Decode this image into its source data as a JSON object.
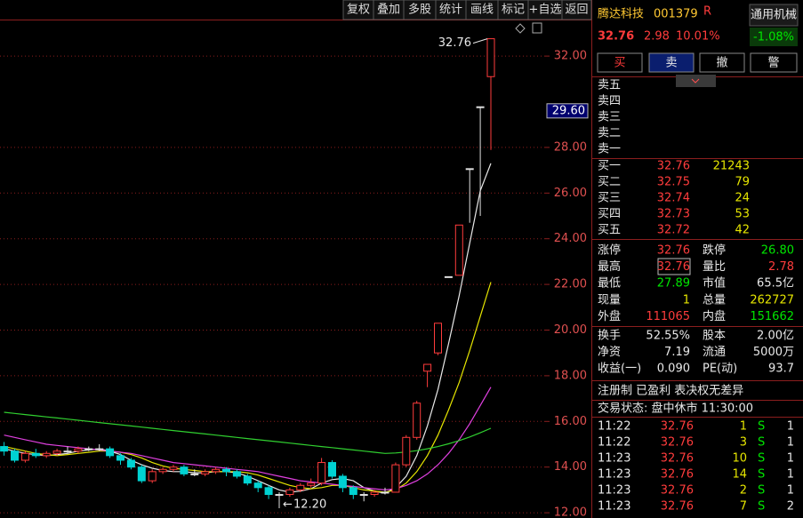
{
  "toolbar": [
    "复权",
    "叠加",
    "多股",
    "统计",
    "画线",
    "标记",
    "+自选",
    "返回"
  ],
  "chart_data": {
    "type": "candlestick",
    "open": [
      14.9,
      14.7,
      14.3,
      14.6,
      14.5,
      14.6,
      14.7,
      14.7,
      14.8,
      14.8,
      14.8,
      14.5,
      14.3,
      14.0,
      13.4,
      13.8,
      13.9,
      14.0,
      13.7,
      13.7,
      13.8,
      13.9,
      13.8,
      13.6,
      13.3,
      13.1,
      12.8,
      12.8,
      13.0,
      13.2,
      13.3,
      14.2,
      13.6,
      13.1,
      12.8,
      12.8,
      12.9,
      12.9,
      14.1,
      15.3,
      18.2,
      19.0,
      22.34,
      22.4,
      27.07,
      29.78,
      31.1
    ],
    "high": [
      15.1,
      14.8,
      14.7,
      14.8,
      14.7,
      14.8,
      14.9,
      14.9,
      14.9,
      15.0,
      14.9,
      14.6,
      14.4,
      14.1,
      13.9,
      14.0,
      14.1,
      14.1,
      13.9,
      13.9,
      14.0,
      14.0,
      13.9,
      13.7,
      13.4,
      13.2,
      12.9,
      13.1,
      13.3,
      13.5,
      14.4,
      14.3,
      13.7,
      13.2,
      12.9,
      13.0,
      13.1,
      14.2,
      15.4,
      16.9,
      18.5,
      20.3,
      22.34,
      24.6,
      27.07,
      29.78,
      32.76
    ],
    "low": [
      14.5,
      14.2,
      14.2,
      14.4,
      14.4,
      14.5,
      14.6,
      14.6,
      14.7,
      14.7,
      14.4,
      14.1,
      13.9,
      13.3,
      13.3,
      13.7,
      13.8,
      13.6,
      13.6,
      13.6,
      13.7,
      13.6,
      13.5,
      13.2,
      12.9,
      12.6,
      12.2,
      12.7,
      12.9,
      13.1,
      13.2,
      13.5,
      12.9,
      12.6,
      12.5,
      12.7,
      12.8,
      12.9,
      14.0,
      15.2,
      17.5,
      18.9,
      22.34,
      22.4,
      24.7,
      25.0,
      27.89
    ],
    "close": [
      14.7,
      14.3,
      14.6,
      14.5,
      14.6,
      14.7,
      14.7,
      14.8,
      14.8,
      14.8,
      14.5,
      14.3,
      14.0,
      13.4,
      13.8,
      13.9,
      14.0,
      13.7,
      13.7,
      13.8,
      13.9,
      13.8,
      13.6,
      13.3,
      13.1,
      12.8,
      12.8,
      13.0,
      13.2,
      13.3,
      14.2,
      13.6,
      13.1,
      12.8,
      12.8,
      12.9,
      12.9,
      14.1,
      15.3,
      16.8,
      18.5,
      20.3,
      22.34,
      24.6,
      27.07,
      29.78,
      32.76
    ],
    "up_color": "#ff3c3c",
    "down_color": "#00d2d2",
    "flat_color": "#e0e0e0",
    "series": [
      {
        "color": "#e8e8e8",
        "values": [
          14.8,
          14.7,
          14.6,
          14.55,
          14.5,
          14.55,
          14.6,
          14.7,
          14.75,
          14.8,
          14.7,
          14.55,
          14.3,
          14.1,
          13.95,
          13.85,
          13.8,
          13.8,
          13.75,
          13.75,
          13.8,
          13.8,
          13.75,
          13.6,
          13.4,
          13.2,
          13.0,
          12.9,
          12.95,
          13.05,
          13.3,
          13.45,
          13.5,
          13.4,
          13.1,
          12.95,
          12.85,
          13.1,
          13.6,
          14.5,
          15.8,
          17.4,
          19.4,
          21.5,
          23.8,
          26.1,
          27.3
        ]
      },
      {
        "color": "#e6e600",
        "values": [
          14.9,
          14.8,
          14.7,
          14.6,
          14.55,
          14.5,
          14.55,
          14.6,
          14.65,
          14.7,
          14.7,
          14.65,
          14.55,
          14.4,
          14.2,
          14.05,
          13.95,
          13.9,
          13.85,
          13.8,
          13.8,
          13.8,
          13.8,
          13.75,
          13.65,
          13.5,
          13.35,
          13.2,
          13.1,
          13.05,
          13.1,
          13.2,
          13.2,
          13.1,
          13.0,
          12.95,
          12.9,
          13.0,
          13.3,
          13.8,
          14.5,
          15.4,
          16.5,
          17.7,
          19.1,
          20.6,
          22.1
        ]
      },
      {
        "color": "#e040e0",
        "values": [
          15.4,
          15.3,
          15.2,
          15.1,
          15.0,
          14.95,
          14.9,
          14.85,
          14.8,
          14.75,
          14.7,
          14.65,
          14.6,
          14.5,
          14.4,
          14.3,
          14.2,
          14.15,
          14.1,
          14.05,
          14.0,
          13.95,
          13.9,
          13.85,
          13.8,
          13.7,
          13.6,
          13.5,
          13.4,
          13.35,
          13.3,
          13.25,
          13.2,
          13.15,
          13.1,
          13.05,
          13.0,
          13.05,
          13.2,
          13.4,
          13.7,
          14.1,
          14.6,
          15.2,
          15.9,
          16.7,
          17.5
        ]
      },
      {
        "color": "#30d030",
        "values": [
          16.4,
          16.35,
          16.3,
          16.25,
          16.2,
          16.15,
          16.1,
          16.05,
          16.0,
          15.95,
          15.9,
          15.85,
          15.8,
          15.75,
          15.7,
          15.65,
          15.6,
          15.55,
          15.5,
          15.45,
          15.4,
          15.35,
          15.3,
          15.25,
          15.2,
          15.15,
          15.1,
          15.05,
          15.0,
          14.95,
          14.9,
          14.85,
          14.8,
          14.75,
          14.7,
          14.65,
          14.6,
          14.62,
          14.66,
          14.72,
          14.8,
          14.9,
          15.02,
          15.16,
          15.32,
          15.5,
          15.7
        ]
      }
    ],
    "ylim": [
      11.77,
      33.6
    ],
    "yticks": [
      {
        "value": 12,
        "label": "12.00"
      },
      {
        "value": 14,
        "label": "14.00"
      },
      {
        "value": 16,
        "label": "16.00"
      },
      {
        "value": 18,
        "label": "18.00"
      },
      {
        "value": 20,
        "label": "20.00"
      },
      {
        "value": 22,
        "label": "22.00"
      },
      {
        "value": 24,
        "label": "24.00"
      },
      {
        "value": 26,
        "label": "26.00"
      },
      {
        "value": 28,
        "label": "28.00"
      },
      {
        "value": 32,
        "label": "32.00"
      }
    ],
    "cursor": {
      "value": 29.6,
      "label": "29.60"
    },
    "high_label": "32.76",
    "low_label": "12.20",
    "grid": true
  },
  "header": {
    "name": "腾达科技",
    "code": "001379",
    "flag": "R",
    "industry": "通用机械",
    "industry_change": "-1.08%",
    "price": "32.76",
    "change": "2.98",
    "change_pct": "10.01%"
  },
  "buttons": [
    "买",
    "卖",
    "撤",
    "警"
  ],
  "asks": [
    "卖五",
    "卖四",
    "卖三",
    "卖二",
    "卖一"
  ],
  "bids": [
    [
      "买一",
      "32.76",
      "21243"
    ],
    [
      "买二",
      "32.75",
      "79"
    ],
    [
      "买三",
      "32.74",
      "24"
    ],
    [
      "买四",
      "32.73",
      "53"
    ],
    [
      "买五",
      "32.72",
      "42"
    ]
  ],
  "stats": [
    [
      "涨停",
      "32.76",
      "跌停",
      "26.80"
    ],
    [
      "最高",
      "32.76",
      "量比",
      "2.78"
    ],
    [
      "最低",
      "27.89",
      "市值",
      "65.5亿"
    ],
    [
      "现量",
      "1",
      "总量",
      "262727"
    ],
    [
      "外盘",
      "111065",
      "内盘",
      "151662"
    ]
  ],
  "info": [
    [
      "换手",
      "52.55%",
      "股本",
      "2.00亿"
    ],
    [
      "净资",
      "7.19",
      "流通",
      "5000万"
    ],
    [
      "收益(一)",
      "0.090",
      "PE(动)",
      "93.7"
    ]
  ],
  "tags": "注册制 已盈利 表决权无差异",
  "status": "交易状态: 盘中休市 11:30:00",
  "ticks": [
    [
      "11:22",
      "32.76",
      "1",
      "S",
      "1"
    ],
    [
      "11:22",
      "32.76",
      "3",
      "S",
      "1"
    ],
    [
      "11:23",
      "32.76",
      "10",
      "S",
      "1"
    ],
    [
      "11:23",
      "32.76",
      "14",
      "S",
      "1"
    ],
    [
      "11:23",
      "32.76",
      "2",
      "S",
      "1"
    ],
    [
      "11:23",
      "32.76",
      "7",
      "S",
      "2"
    ]
  ]
}
